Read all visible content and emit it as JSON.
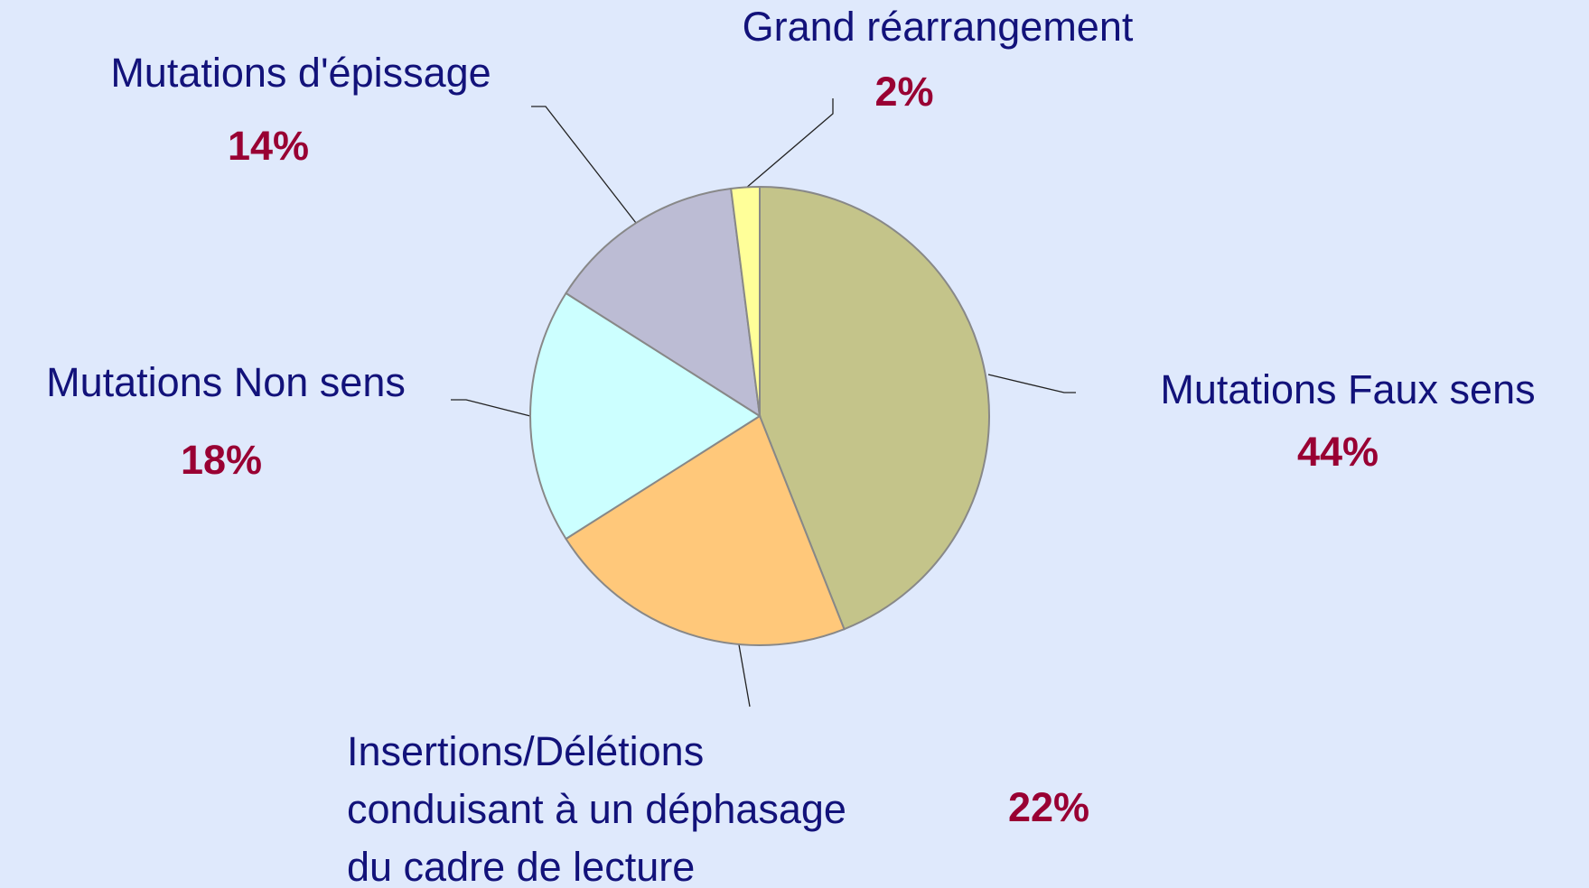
{
  "chart_data": {
    "type": "pie",
    "categories": [
      "Mutations Faux sens",
      "Insertions/Délétions\nconduisant à un déphasage\ndu cadre de lecture",
      "Mutations Non sens",
      "Mutations d'épissage",
      "Grand réarrangement"
    ],
    "values": [
      44,
      22,
      18,
      14,
      2
    ],
    "value_labels": [
      "44%",
      "22%",
      "18%",
      "14%",
      "2%"
    ],
    "colors": [
      "#c4c48a",
      "#ffc87a",
      "#ccffff",
      "#bcbcd4",
      "#ffff99"
    ]
  }
}
